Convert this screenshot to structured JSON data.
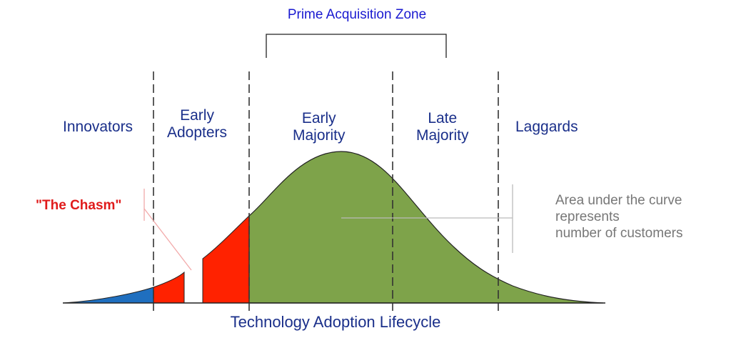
{
  "colors": {
    "innovators_fill": "#1f6fbf",
    "early_adopters_fill": "#ff2200",
    "majority_fill": "#7ea34a",
    "segment_text": "#1a2f8a",
    "zone_text": "#1a1ad0",
    "chasm_text": "#e01b1b",
    "note_text": "#777777"
  },
  "zone_title": "Prime Acquisition Zone",
  "segments": [
    {
      "id": "innovators",
      "label": "Innovators"
    },
    {
      "id": "early-adopters",
      "label": "Early\nAdopters"
    },
    {
      "id": "early-majority",
      "label": "Early\nMajority"
    },
    {
      "id": "late-majority",
      "label": "Late\nMajority"
    },
    {
      "id": "laggards",
      "label": "Laggards"
    }
  ],
  "chasm_label": "\"The Chasm\"",
  "note": "Area under the curve\nrepresents\nnumber of customers",
  "caption": "Technology Adoption Lifecycle"
}
